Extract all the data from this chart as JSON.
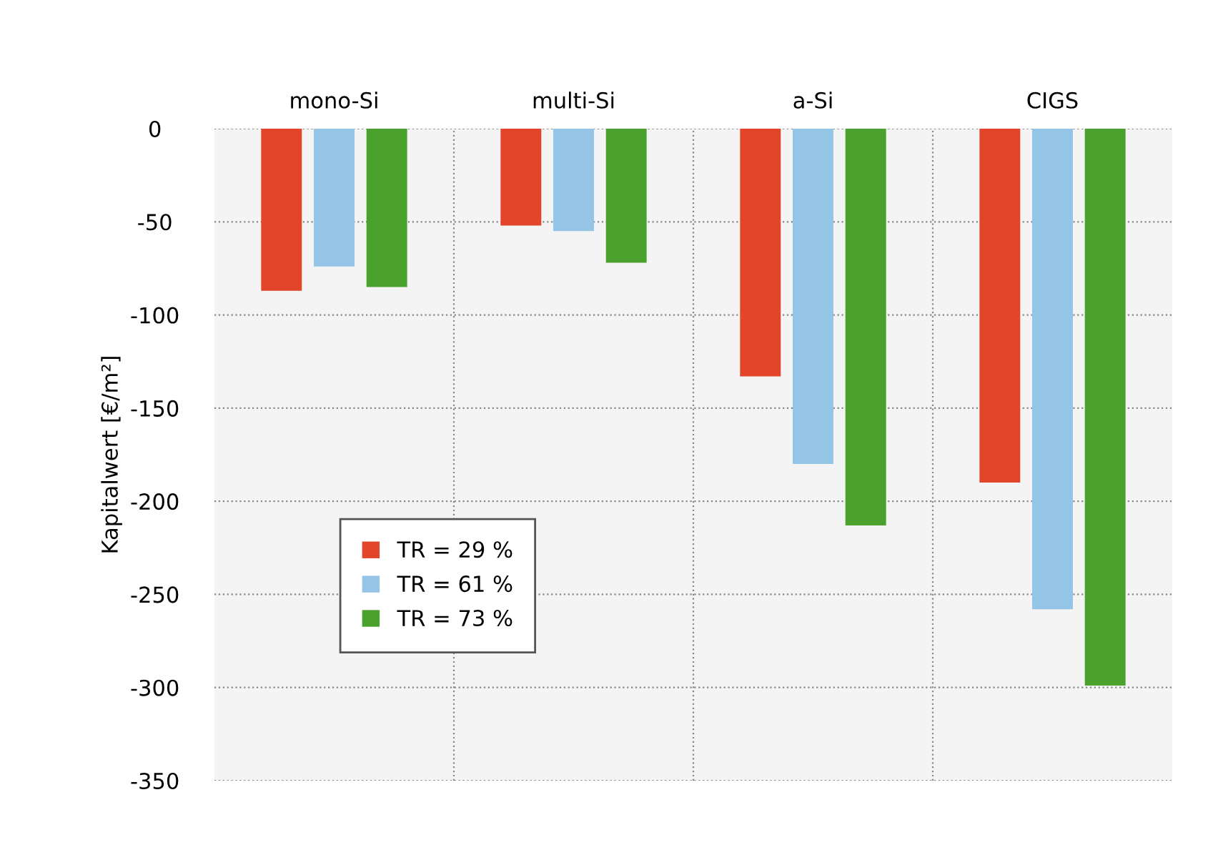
{
  "chart_data": {
    "type": "bar",
    "ylabel": "Kapitalwert [€/m²]",
    "categories": [
      "mono-Si",
      "multi-Si",
      "a-Si",
      "CIGS"
    ],
    "series": [
      {
        "name": "TR = 29 %",
        "color": "#e2452a",
        "values": [
          -87,
          -52,
          -133,
          -190
        ]
      },
      {
        "name": "TR = 61 %",
        "color": "#94c5e6",
        "values": [
          -74,
          -55,
          -180,
          -258
        ]
      },
      {
        "name": "TR = 73 %",
        "color": "#4ba12e",
        "values": [
          -85,
          -72,
          -213,
          -299
        ]
      }
    ],
    "ylim": [
      -350,
      0
    ],
    "yticks": [
      -350,
      -300,
      -250,
      -200,
      -150,
      -100,
      -50,
      0
    ],
    "grid": true,
    "legend": "bottom left"
  }
}
